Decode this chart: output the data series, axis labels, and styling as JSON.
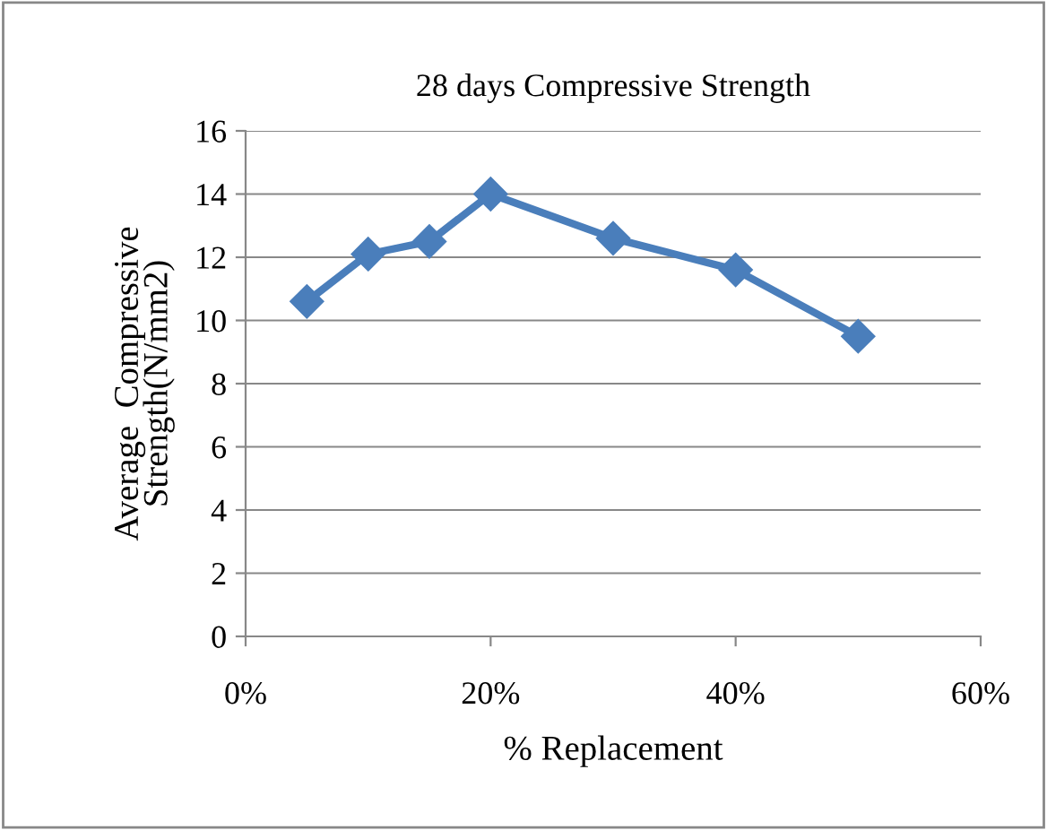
{
  "chart_data": {
    "type": "line",
    "title": "28 days Compressive Strength",
    "xlabel": "% Replacement",
    "ylabel": "Average  Compressive\nStrength(N/mm2)",
    "x": [
      5,
      10,
      15,
      20,
      30,
      40,
      50
    ],
    "series": [
      {
        "color": "#4a7ebb",
        "values": [
          10.6,
          12.1,
          12.5,
          14.0,
          12.6,
          11.6,
          9.5
        ]
      }
    ],
    "xlim": [
      0,
      60
    ],
    "xticks": [
      {
        "value": 0,
        "label": "0%"
      },
      {
        "value": 20,
        "label": "20%"
      },
      {
        "value": 40,
        "label": "40%"
      },
      {
        "value": 60,
        "label": "60%"
      }
    ],
    "ylim": [
      0,
      16
    ],
    "yticks": [
      0,
      2,
      4,
      6,
      8,
      10,
      12,
      14,
      16
    ],
    "grid": "y",
    "marker": "diamond",
    "line_style": "solid",
    "legend": false
  }
}
